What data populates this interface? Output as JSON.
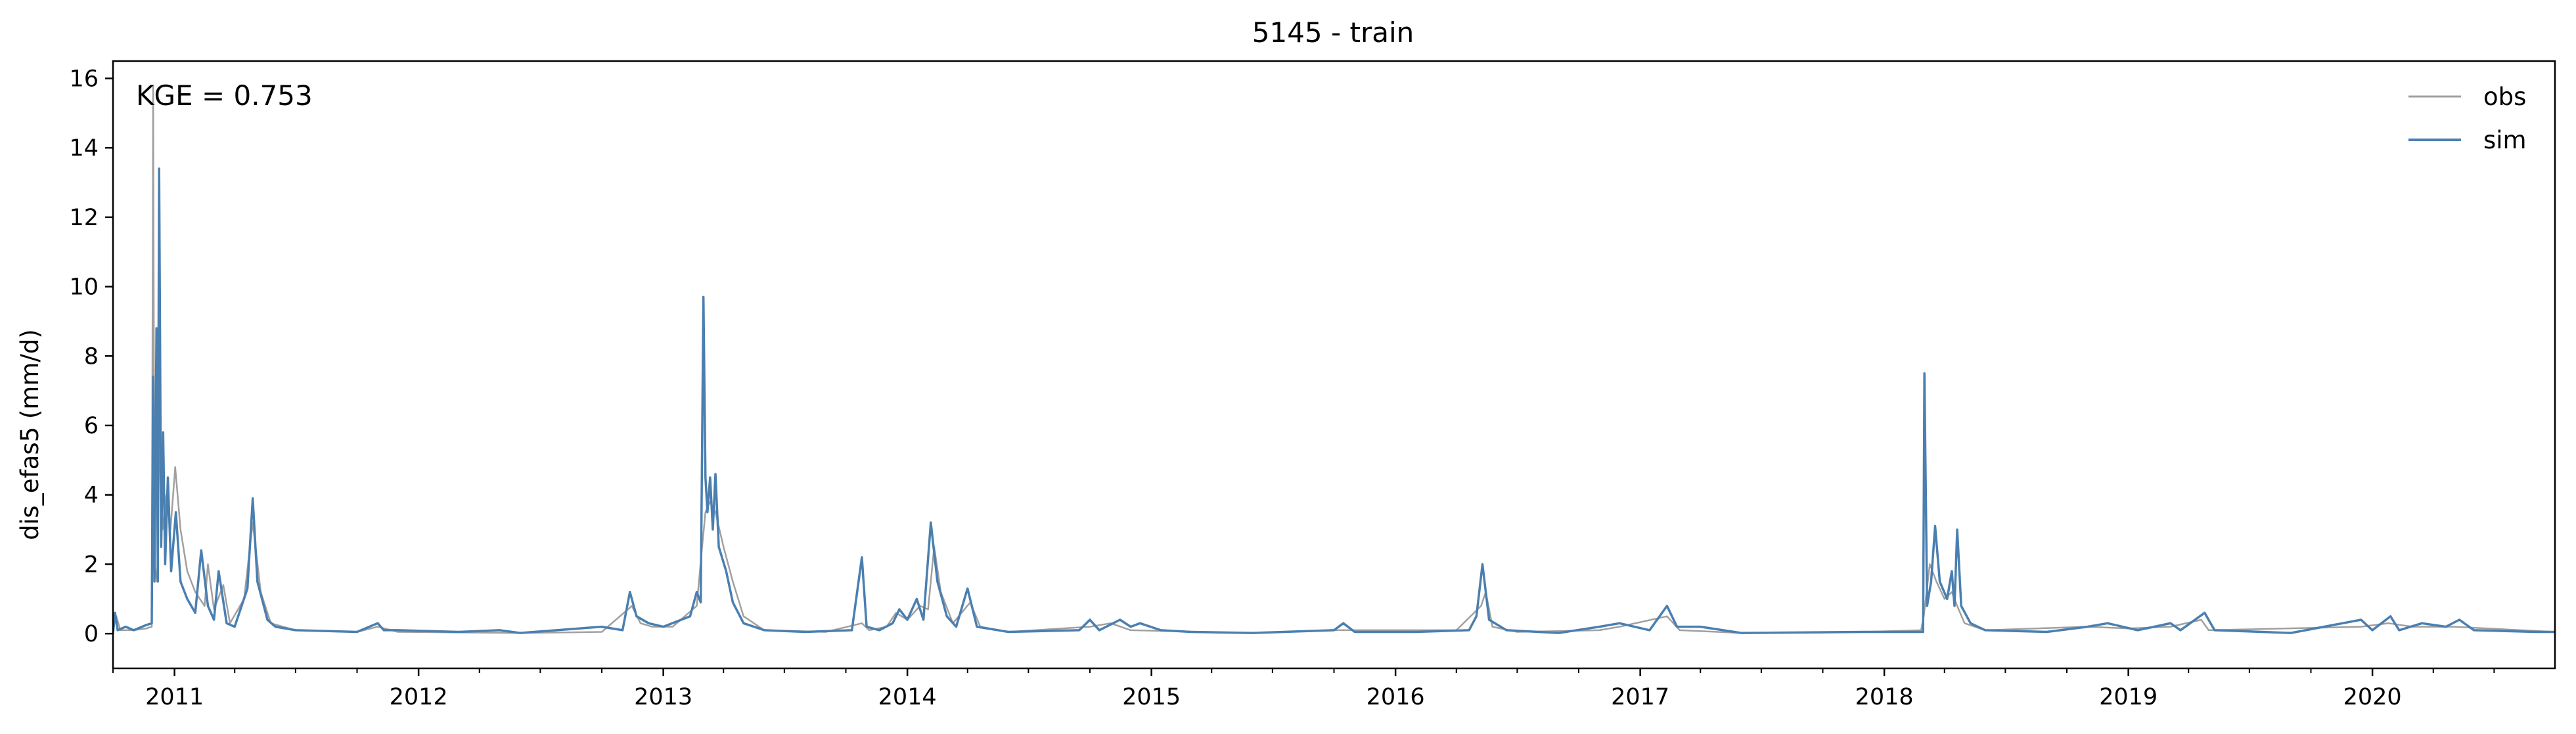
{
  "chart_data": {
    "type": "line",
    "title": "5145 - train",
    "xlabel": "",
    "ylabel": "dis_efas5 (mm/d)",
    "annotation": "KGE = 0.753",
    "xlim": [
      "2010-10-01",
      "2020-09-30"
    ],
    "ylim": [
      -1,
      16.5
    ],
    "yticks": [
      0,
      2,
      4,
      6,
      8,
      10,
      12,
      14,
      16
    ],
    "xticks": [
      {
        "date": "2011-01-01",
        "label": "2011"
      },
      {
        "date": "2012-01-01",
        "label": "2012"
      },
      {
        "date": "2013-01-01",
        "label": "2013"
      },
      {
        "date": "2014-01-01",
        "label": "2014"
      },
      {
        "date": "2015-01-01",
        "label": "2015"
      },
      {
        "date": "2016-01-01",
        "label": "2016"
      },
      {
        "date": "2017-01-01",
        "label": "2017"
      },
      {
        "date": "2018-01-01",
        "label": "2018"
      },
      {
        "date": "2019-01-01",
        "label": "2019"
      },
      {
        "date": "2020-01-01",
        "label": "2020"
      }
    ],
    "grid": false,
    "legend": {
      "placement": "upper-right"
    },
    "series": [
      {
        "name": "obs",
        "color": "#a0a0a0",
        "points": [
          [
            "2010-10-01",
            0.1
          ],
          [
            "2010-10-06",
            0.5
          ],
          [
            "2010-10-12",
            0.1
          ],
          [
            "2010-11-01",
            0.1
          ],
          [
            "2010-11-20",
            0.15
          ],
          [
            "2010-11-28",
            0.2
          ],
          [
            "2010-11-30",
            15.8
          ],
          [
            "2010-12-02",
            2.0
          ],
          [
            "2010-12-06",
            1.5
          ],
          [
            "2010-12-10",
            6.5
          ],
          [
            "2010-12-14",
            3.0
          ],
          [
            "2010-12-20",
            4.0
          ],
          [
            "2010-12-26",
            3.0
          ],
          [
            "2011-01-02",
            4.8
          ],
          [
            "2011-01-10",
            3.0
          ],
          [
            "2011-01-20",
            1.8
          ],
          [
            "2011-02-01",
            1.2
          ],
          [
            "2011-02-15",
            0.8
          ],
          [
            "2011-02-20",
            2.0
          ],
          [
            "2011-03-01",
            0.7
          ],
          [
            "2011-03-15",
            1.4
          ],
          [
            "2011-03-25",
            0.3
          ],
          [
            "2011-04-15",
            1.0
          ],
          [
            "2011-04-28",
            3.2
          ],
          [
            "2011-05-10",
            1.2
          ],
          [
            "2011-05-25",
            0.3
          ],
          [
            "2011-07-01",
            0.1
          ],
          [
            "2011-10-01",
            0.05
          ],
          [
            "2011-11-01",
            0.2
          ],
          [
            "2011-12-01",
            0.05
          ],
          [
            "2012-06-01",
            0.02
          ],
          [
            "2012-10-01",
            0.05
          ],
          [
            "2012-11-15",
            0.8
          ],
          [
            "2012-11-28",
            0.3
          ],
          [
            "2012-12-15",
            0.2
          ],
          [
            "2013-01-15",
            0.2
          ],
          [
            "2013-02-20",
            0.8
          ],
          [
            "2013-02-28",
            2.5
          ],
          [
            "2013-03-05",
            3.5
          ],
          [
            "2013-03-12",
            3.8
          ],
          [
            "2013-03-20",
            3.5
          ],
          [
            "2013-04-01",
            2.5
          ],
          [
            "2013-04-15",
            1.5
          ],
          [
            "2013-05-01",
            0.5
          ],
          [
            "2013-06-01",
            0.1
          ],
          [
            "2013-09-01",
            0.05
          ],
          [
            "2013-10-25",
            0.3
          ],
          [
            "2013-11-05",
            0.1
          ],
          [
            "2013-12-01",
            0.2
          ],
          [
            "2013-12-15",
            0.6
          ],
          [
            "2014-01-01",
            0.4
          ],
          [
            "2014-01-20",
            0.8
          ],
          [
            "2014-02-01",
            0.7
          ],
          [
            "2014-02-10",
            2.5
          ],
          [
            "2014-02-20",
            1.2
          ],
          [
            "2014-03-10",
            0.3
          ],
          [
            "2014-04-05",
            0.9
          ],
          [
            "2014-04-20",
            0.2
          ],
          [
            "2014-06-01",
            0.05
          ],
          [
            "2014-10-01",
            0.2
          ],
          [
            "2014-11-01",
            0.3
          ],
          [
            "2014-12-01",
            0.1
          ],
          [
            "2015-06-01",
            0.02
          ],
          [
            "2015-10-01",
            0.1
          ],
          [
            "2015-12-01",
            0.1
          ],
          [
            "2016-04-01",
            0.1
          ],
          [
            "2016-05-08",
            0.8
          ],
          [
            "2016-05-15",
            1.2
          ],
          [
            "2016-05-25",
            0.2
          ],
          [
            "2016-07-01",
            0.05
          ],
          [
            "2016-11-01",
            0.1
          ],
          [
            "2016-12-01",
            0.2
          ],
          [
            "2017-02-10",
            0.5
          ],
          [
            "2017-03-01",
            0.1
          ],
          [
            "2017-06-01",
            0.02
          ],
          [
            "2017-12-01",
            0.05
          ],
          [
            "2018-02-25",
            0.1
          ],
          [
            "2018-03-01",
            0.5
          ],
          [
            "2018-03-10",
            2.0
          ],
          [
            "2018-03-20",
            1.5
          ],
          [
            "2018-04-01",
            1.0
          ],
          [
            "2018-04-12",
            1.2
          ],
          [
            "2018-04-20",
            0.8
          ],
          [
            "2018-05-01",
            0.3
          ],
          [
            "2018-06-01",
            0.1
          ],
          [
            "2018-11-01",
            0.2
          ],
          [
            "2019-01-01",
            0.15
          ],
          [
            "2019-03-05",
            0.2
          ],
          [
            "2019-04-20",
            0.4
          ],
          [
            "2019-05-01",
            0.1
          ],
          [
            "2019-12-15",
            0.2
          ],
          [
            "2020-01-25",
            0.3
          ],
          [
            "2020-03-01",
            0.2
          ],
          [
            "2020-05-01",
            0.2
          ],
          [
            "2020-09-30",
            0.05
          ]
        ]
      },
      {
        "name": "sim",
        "color": "#4a7fb0",
        "points": [
          [
            "2010-10-01",
            0.0
          ],
          [
            "2010-10-04",
            0.6
          ],
          [
            "2010-10-08",
            0.1
          ],
          [
            "2010-10-20",
            0.2
          ],
          [
            "2010-11-01",
            0.1
          ],
          [
            "2010-11-20",
            0.25
          ],
          [
            "2010-11-28",
            0.3
          ],
          [
            "2010-11-30",
            7.4
          ],
          [
            "2010-12-02",
            1.5
          ],
          [
            "2010-12-05",
            8.8
          ],
          [
            "2010-12-07",
            1.5
          ],
          [
            "2010-12-09",
            13.4
          ],
          [
            "2010-12-12",
            2.5
          ],
          [
            "2010-12-15",
            5.8
          ],
          [
            "2010-12-18",
            2.0
          ],
          [
            "2010-12-22",
            4.5
          ],
          [
            "2010-12-27",
            1.8
          ],
          [
            "2011-01-03",
            3.5
          ],
          [
            "2011-01-10",
            1.5
          ],
          [
            "2011-01-20",
            1.0
          ],
          [
            "2011-02-01",
            0.6
          ],
          [
            "2011-02-10",
            2.4
          ],
          [
            "2011-02-20",
            0.8
          ],
          [
            "2011-03-01",
            0.4
          ],
          [
            "2011-03-08",
            1.8
          ],
          [
            "2011-03-20",
            0.3
          ],
          [
            "2011-04-01",
            0.2
          ],
          [
            "2011-04-20",
            1.3
          ],
          [
            "2011-04-28",
            3.9
          ],
          [
            "2011-05-05",
            1.5
          ],
          [
            "2011-05-20",
            0.4
          ],
          [
            "2011-06-01",
            0.2
          ],
          [
            "2011-07-01",
            0.1
          ],
          [
            "2011-10-01",
            0.05
          ],
          [
            "2011-11-01",
            0.3
          ],
          [
            "2011-11-10",
            0.1
          ],
          [
            "2011-12-01",
            0.1
          ],
          [
            "2012-03-01",
            0.05
          ],
          [
            "2012-05-01",
            0.1
          ],
          [
            "2012-06-01",
            0.02
          ],
          [
            "2012-10-01",
            0.2
          ],
          [
            "2012-11-01",
            0.1
          ],
          [
            "2012-11-12",
            1.2
          ],
          [
            "2012-11-22",
            0.5
          ],
          [
            "2012-12-10",
            0.3
          ],
          [
            "2013-01-01",
            0.2
          ],
          [
            "2013-02-10",
            0.5
          ],
          [
            "2013-02-20",
            1.2
          ],
          [
            "2013-02-26",
            0.9
          ],
          [
            "2013-03-02",
            9.7
          ],
          [
            "2013-03-05",
            4.5
          ],
          [
            "2013-03-08",
            3.5
          ],
          [
            "2013-03-12",
            4.5
          ],
          [
            "2013-03-16",
            3.0
          ],
          [
            "2013-03-20",
            4.6
          ],
          [
            "2013-03-25",
            2.5
          ],
          [
            "2013-04-05",
            1.8
          ],
          [
            "2013-04-15",
            0.9
          ],
          [
            "2013-05-01",
            0.3
          ],
          [
            "2013-06-01",
            0.1
          ],
          [
            "2013-08-01",
            0.05
          ],
          [
            "2013-10-10",
            0.1
          ],
          [
            "2013-10-25",
            2.2
          ],
          [
            "2013-11-01",
            0.2
          ],
          [
            "2013-11-20",
            0.1
          ],
          [
            "2013-12-10",
            0.3
          ],
          [
            "2013-12-20",
            0.7
          ],
          [
            "2014-01-01",
            0.4
          ],
          [
            "2014-01-15",
            1.0
          ],
          [
            "2014-01-25",
            0.4
          ],
          [
            "2014-02-05",
            3.2
          ],
          [
            "2014-02-15",
            1.5
          ],
          [
            "2014-03-01",
            0.5
          ],
          [
            "2014-03-15",
            0.2
          ],
          [
            "2014-04-01",
            1.3
          ],
          [
            "2014-04-15",
            0.2
          ],
          [
            "2014-06-01",
            0.05
          ],
          [
            "2014-09-15",
            0.1
          ],
          [
            "2014-10-01",
            0.4
          ],
          [
            "2014-10-15",
            0.1
          ],
          [
            "2014-11-15",
            0.4
          ],
          [
            "2014-12-01",
            0.2
          ],
          [
            "2014-12-15",
            0.3
          ],
          [
            "2015-01-15",
            0.1
          ],
          [
            "2015-03-01",
            0.05
          ],
          [
            "2015-06-01",
            0.02
          ],
          [
            "2015-10-01",
            0.1
          ],
          [
            "2015-10-15",
            0.3
          ],
          [
            "2015-11-01",
            0.05
          ],
          [
            "2016-02-01",
            0.05
          ],
          [
            "2016-04-20",
            0.1
          ],
          [
            "2016-05-01",
            0.5
          ],
          [
            "2016-05-10",
            2.0
          ],
          [
            "2016-05-20",
            0.4
          ],
          [
            "2016-06-15",
            0.1
          ],
          [
            "2016-09-01",
            0.02
          ],
          [
            "2016-11-01",
            0.2
          ],
          [
            "2016-12-01",
            0.3
          ],
          [
            "2017-01-15",
            0.1
          ],
          [
            "2017-02-10",
            0.8
          ],
          [
            "2017-02-25",
            0.2
          ],
          [
            "2017-04-01",
            0.2
          ],
          [
            "2017-06-01",
            0.02
          ],
          [
            "2017-12-01",
            0.05
          ],
          [
            "2018-02-28",
            0.05
          ],
          [
            "2018-03-02",
            7.5
          ],
          [
            "2018-03-06",
            0.8
          ],
          [
            "2018-03-12",
            1.5
          ],
          [
            "2018-03-18",
            3.1
          ],
          [
            "2018-03-25",
            1.5
          ],
          [
            "2018-04-05",
            1.0
          ],
          [
            "2018-04-12",
            1.8
          ],
          [
            "2018-04-16",
            0.8
          ],
          [
            "2018-04-20",
            3.0
          ],
          [
            "2018-04-26",
            0.8
          ],
          [
            "2018-05-10",
            0.3
          ],
          [
            "2018-06-01",
            0.1
          ],
          [
            "2018-09-01",
            0.05
          ],
          [
            "2018-11-01",
            0.2
          ],
          [
            "2018-12-01",
            0.3
          ],
          [
            "2019-01-15",
            0.1
          ],
          [
            "2019-03-05",
            0.3
          ],
          [
            "2019-03-20",
            0.1
          ],
          [
            "2019-04-25",
            0.6
          ],
          [
            "2019-05-10",
            0.1
          ],
          [
            "2019-09-01",
            0.02
          ],
          [
            "2019-12-15",
            0.4
          ],
          [
            "2020-01-01",
            0.1
          ],
          [
            "2020-01-28",
            0.5
          ],
          [
            "2020-02-10",
            0.1
          ],
          [
            "2020-03-15",
            0.3
          ],
          [
            "2020-04-20",
            0.2
          ],
          [
            "2020-05-10",
            0.4
          ],
          [
            "2020-06-01",
            0.1
          ],
          [
            "2020-09-01",
            0.05
          ],
          [
            "2020-09-30",
            0.05
          ]
        ]
      }
    ]
  }
}
